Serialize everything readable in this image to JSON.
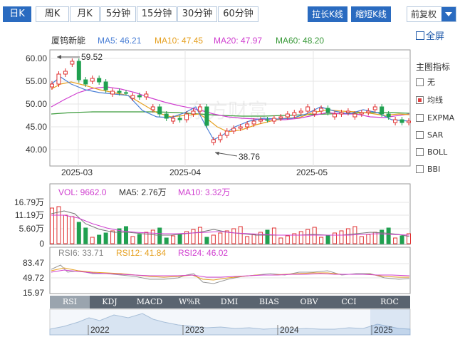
{
  "toolbar": {
    "periods": [
      "日K",
      "周K",
      "月K",
      "5分钟",
      "15分钟",
      "30分钟",
      "60分钟"
    ],
    "active_period": "日K",
    "zoom_in": "拉长K线",
    "zoom_out": "缩短K线",
    "adjust": "前复权"
  },
  "fullscreen": "全屏",
  "main": {
    "stock_name": "厦钨新能",
    "ma": [
      {
        "label": "MA5: 46.21",
        "color": "#4a7fd6"
      },
      {
        "label": "MA10: 47.45",
        "color": "#e6a020"
      },
      {
        "label": "MA20: 47.97",
        "color": "#d040d0"
      },
      {
        "label": "MA60: 48.20",
        "color": "#3a9a3a"
      }
    ],
    "y_ticks": [
      "60.00",
      "55.00",
      "50.00",
      "45.00",
      "40.00"
    ],
    "x_ticks": [
      "2025-03",
      "2025-04",
      "2025-05"
    ],
    "high_label": "59.52",
    "low_label": "38.76",
    "watermark": "东方财富"
  },
  "indicators": {
    "title": "主图指标",
    "items": [
      "无",
      "均线",
      "EXPMA",
      "SAR",
      "BOLL",
      "BBI"
    ],
    "selected": "均线"
  },
  "volume": {
    "labels": [
      {
        "label": "VOL: 9662.0",
        "color": "#d040d0"
      },
      {
        "label": "MA5: 2.76万",
        "color": "#333333"
      },
      {
        "label": "MA10: 3.32万",
        "color": "#d040d0"
      }
    ],
    "y_ticks": [
      "16.79万",
      "11.19万",
      "5.60万",
      "0"
    ]
  },
  "rsi": {
    "labels": [
      {
        "label": "RSI6: 33.71",
        "color": "#888888"
      },
      {
        "label": "RSI12: 41.84",
        "color": "#e6a020"
      },
      {
        "label": "RSI24: 46.02",
        "color": "#d040d0"
      }
    ],
    "y_ticks": [
      "83.47",
      "49.72",
      "15.97"
    ]
  },
  "bottom_tabs": [
    "RSI",
    "KDJ",
    "MACD",
    "W%R",
    "DMI",
    "BIAS",
    "OBV",
    "CCI",
    "ROC"
  ],
  "active_bottom_tab": "RSI",
  "timeline": [
    "2022",
    "2023",
    "2024",
    "2025"
  ]
}
